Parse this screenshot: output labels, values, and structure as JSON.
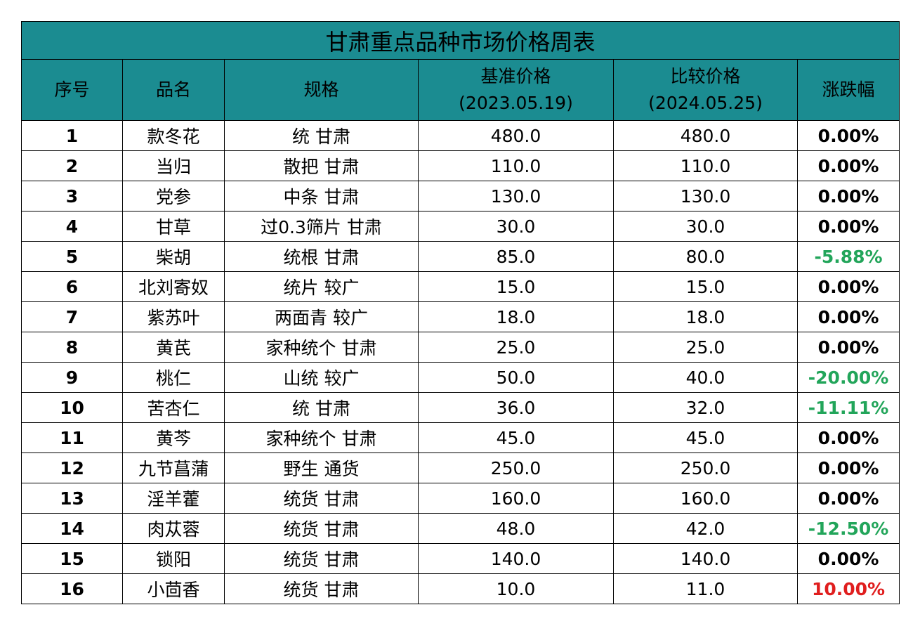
{
  "title": "甘肃重点品种市场价格周表",
  "headers": {
    "index": "序号",
    "name": "品名",
    "spec": "规格",
    "base_price": "基准价格",
    "base_date": "(2023.05.19)",
    "compare_price": "比较价格",
    "compare_date": "(2024.05.25)",
    "change": "涨跌幅"
  },
  "colors": {
    "header_bg": "#1b8c91",
    "down": "#22a55a",
    "up": "#e01e1e"
  },
  "rows": [
    {
      "index": "1",
      "name": "款冬花",
      "spec": "统 甘肃",
      "base": "480.0",
      "compare": "480.0",
      "change": "0.00%",
      "trend": "zero"
    },
    {
      "index": "2",
      "name": "当归",
      "spec": "散把 甘肃",
      "base": "110.0",
      "compare": "110.0",
      "change": "0.00%",
      "trend": "zero"
    },
    {
      "index": "3",
      "name": "党参",
      "spec": "中条 甘肃",
      "base": "130.0",
      "compare": "130.0",
      "change": "0.00%",
      "trend": "zero"
    },
    {
      "index": "4",
      "name": "甘草",
      "spec": "过0.3筛片 甘肃",
      "base": "30.0",
      "compare": "30.0",
      "change": "0.00%",
      "trend": "zero"
    },
    {
      "index": "5",
      "name": "柴胡",
      "spec": "统根 甘肃",
      "base": "85.0",
      "compare": "80.0",
      "change": "-5.88%",
      "trend": "neg"
    },
    {
      "index": "6",
      "name": "北刘寄奴",
      "spec": "统片 较广",
      "base": "15.0",
      "compare": "15.0",
      "change": "0.00%",
      "trend": "zero"
    },
    {
      "index": "7",
      "name": "紫苏叶",
      "spec": "两面青 较广",
      "base": "18.0",
      "compare": "18.0",
      "change": "0.00%",
      "trend": "zero"
    },
    {
      "index": "8",
      "name": "黄芪",
      "spec": "家种统个 甘肃",
      "base": "25.0",
      "compare": "25.0",
      "change": "0.00%",
      "trend": "zero"
    },
    {
      "index": "9",
      "name": "桃仁",
      "spec": "山统 较广",
      "base": "50.0",
      "compare": "40.0",
      "change": "-20.00%",
      "trend": "neg"
    },
    {
      "index": "10",
      "name": "苦杏仁",
      "spec": "统 甘肃",
      "base": "36.0",
      "compare": "32.0",
      "change": "-11.11%",
      "trend": "neg"
    },
    {
      "index": "11",
      "name": "黄芩",
      "spec": "家种统个 甘肃",
      "base": "45.0",
      "compare": "45.0",
      "change": "0.00%",
      "trend": "zero"
    },
    {
      "index": "12",
      "name": "九节菖蒲",
      "spec": "野生 通货",
      "base": "250.0",
      "compare": "250.0",
      "change": "0.00%",
      "trend": "zero"
    },
    {
      "index": "13",
      "name": "淫羊藿",
      "spec": "统货 甘肃",
      "base": "160.0",
      "compare": "160.0",
      "change": "0.00%",
      "trend": "zero"
    },
    {
      "index": "14",
      "name": "肉苁蓉",
      "spec": "统货 甘肃",
      "base": "48.0",
      "compare": "42.0",
      "change": "-12.50%",
      "trend": "neg"
    },
    {
      "index": "15",
      "name": "锁阳",
      "spec": "统货 甘肃",
      "base": "140.0",
      "compare": "140.0",
      "change": "0.00%",
      "trend": "zero"
    },
    {
      "index": "16",
      "name": "小茴香",
      "spec": "统货 甘肃",
      "base": "10.0",
      "compare": "11.0",
      "change": "10.00%",
      "trend": "pos"
    }
  ]
}
